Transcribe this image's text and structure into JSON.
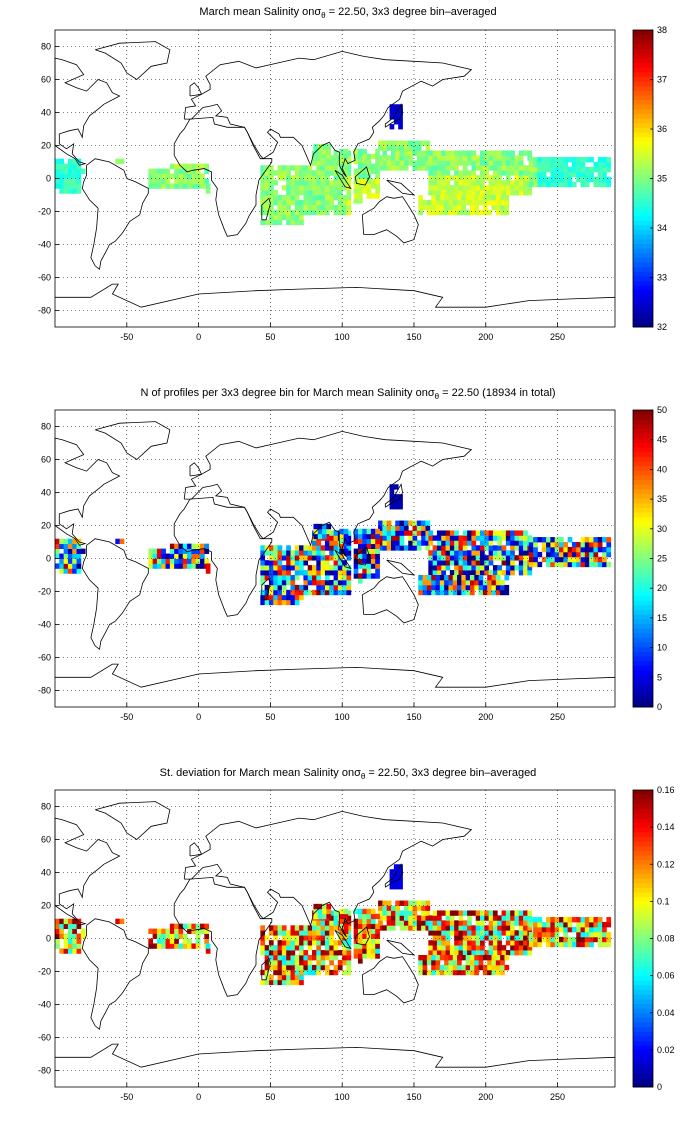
{
  "panels": [
    {
      "title_main": "March mean Salinity on",
      "title_sigma": "σ",
      "title_sub": "θ",
      "title_rest": " = 22.50, 3x3 degree bin–averaged",
      "colorbar": {
        "min": 32,
        "max": 38,
        "ticks": [
          "38",
          "37",
          "36",
          "35",
          "34",
          "33",
          "32"
        ]
      }
    },
    {
      "title_main": "N of profiles per 3x3 degree bin for March mean Salinity on",
      "title_sigma": "σ",
      "title_sub": "θ",
      "title_rest": " = 22.50 (18934 in total)",
      "colorbar": {
        "min": 0,
        "max": 50,
        "ticks": [
          "50",
          "45",
          "40",
          "35",
          "30",
          "25",
          "20",
          "15",
          "10",
          "5",
          "0"
        ]
      }
    },
    {
      "title_main": "St. deviation for March mean Salinity on",
      "title_sigma": "σ",
      "title_sub": "θ",
      "title_rest": " = 22.50, 3x3 degree bin–averaged",
      "colorbar": {
        "min": 0,
        "max": 0.16,
        "ticks": [
          "0.16",
          "0.14",
          "0.12",
          "0.1",
          "0.08",
          "0.06",
          "0.04",
          "0.02",
          "0"
        ]
      }
    }
  ],
  "axes": {
    "x_ticks": [
      "-50",
      "0",
      "50",
      "100",
      "150",
      "200",
      "250"
    ],
    "x_values": [
      -50,
      0,
      50,
      100,
      150,
      200,
      250
    ],
    "y_ticks": [
      "80",
      "60",
      "40",
      "20",
      "0",
      "-20",
      "-40",
      "-60",
      "-80"
    ],
    "y_values": [
      80,
      60,
      40,
      20,
      0,
      -20,
      -40,
      -60,
      -80
    ],
    "xlim": [
      -100,
      290
    ],
    "ylim": [
      -90,
      90
    ],
    "grid": "dotted"
  },
  "colormap": "jet",
  "chart_data": [
    {
      "type": "heatmap",
      "title": "March mean Salinity on σθ = 22.50, 3x3 degree bin–averaged",
      "bin_size_deg": 3,
      "zlim": [
        32,
        38
      ],
      "regions": [
        {
          "lon": [
            -100,
            -82
          ],
          "lat": [
            -9,
            12
          ],
          "value": 34.3
        },
        {
          "lon": [
            -35,
            10
          ],
          "lat": [
            -6,
            9
          ],
          "value": 35.2
        },
        {
          "lon": [
            40,
            105
          ],
          "lat": [
            -28,
            18
          ],
          "value": 35.1
        },
        {
          "lon": [
            110,
            230
          ],
          "lat": [
            -20,
            22
          ],
          "value": 35.0
        },
        {
          "lon": [
            230,
            287
          ],
          "lat": [
            -5,
            15
          ],
          "value": 34.5
        }
      ]
    },
    {
      "type": "heatmap",
      "title": "N of profiles per 3x3 degree bin for March mean Salinity on σθ = 22.50 (18934 in total)",
      "bin_size_deg": 3,
      "zlim": [
        0,
        50
      ],
      "total_profiles": 18934
    },
    {
      "type": "heatmap",
      "title": "St. deviation for March mean Salinity on σθ = 22.50, 3x3 degree bin–averaged",
      "bin_size_deg": 3,
      "zlim": [
        0,
        0.16
      ]
    }
  ]
}
